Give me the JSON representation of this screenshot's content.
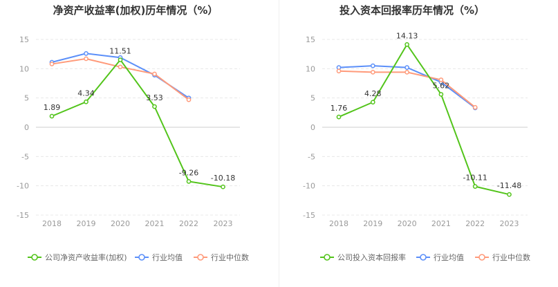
{
  "colors": {
    "primary": "#52c41a",
    "industry_avg": "#5b8ff9",
    "industry_median": "#ff9a7a",
    "grid": "#e8e8e8",
    "axis_text": "#999999",
    "title": "#333333",
    "label": "#333333"
  },
  "chart_data": [
    {
      "type": "line",
      "title": "净资产收益率(加权)历年情况（%）",
      "x": [
        "2018",
        "2019",
        "2020",
        "2021",
        "2022",
        "2023"
      ],
      "ylim": [
        -15,
        15
      ],
      "yticks": [
        15,
        10,
        5,
        0,
        -5,
        -10,
        -15
      ],
      "grid": true,
      "legend_position": "bottom",
      "series": [
        {
          "name": "公司净资产收益率(加权)",
          "color_key": "primary",
          "values": [
            1.89,
            4.34,
            11.51,
            3.53,
            -9.26,
            -10.18
          ],
          "labels": [
            "1.89",
            "4.34",
            "11.51",
            "3.53",
            "-9.26",
            "-10.18"
          ]
        },
        {
          "name": "行业均值",
          "color_key": "industry_avg",
          "values": [
            11.1,
            12.6,
            11.9,
            8.9,
            5.0,
            null
          ]
        },
        {
          "name": "行业中位数",
          "color_key": "industry_median",
          "values": [
            10.8,
            11.7,
            10.3,
            9.1,
            4.7,
            null
          ]
        }
      ]
    },
    {
      "type": "line",
      "title": "投入资本回报率历年情况（%）",
      "x": [
        "2018",
        "2019",
        "2020",
        "2021",
        "2022",
        "2023"
      ],
      "ylim": [
        -15,
        15
      ],
      "yticks": [
        15,
        10,
        5,
        0,
        -5,
        -10,
        -15
      ],
      "grid": true,
      "legend_position": "bottom",
      "series": [
        {
          "name": "公司投入资本回报率",
          "color_key": "primary",
          "values": [
            1.76,
            4.28,
            14.13,
            5.62,
            -10.11,
            -11.48
          ],
          "labels": [
            "1.76",
            "4.28",
            "14.13",
            "5.62",
            "-10.11",
            "-11.48"
          ]
        },
        {
          "name": "行业均值",
          "color_key": "industry_avg",
          "values": [
            10.2,
            10.5,
            10.2,
            7.7,
            3.3,
            null
          ]
        },
        {
          "name": "行业中位数",
          "color_key": "industry_median",
          "values": [
            9.6,
            9.4,
            9.4,
            8.1,
            3.4,
            null
          ]
        }
      ]
    }
  ]
}
